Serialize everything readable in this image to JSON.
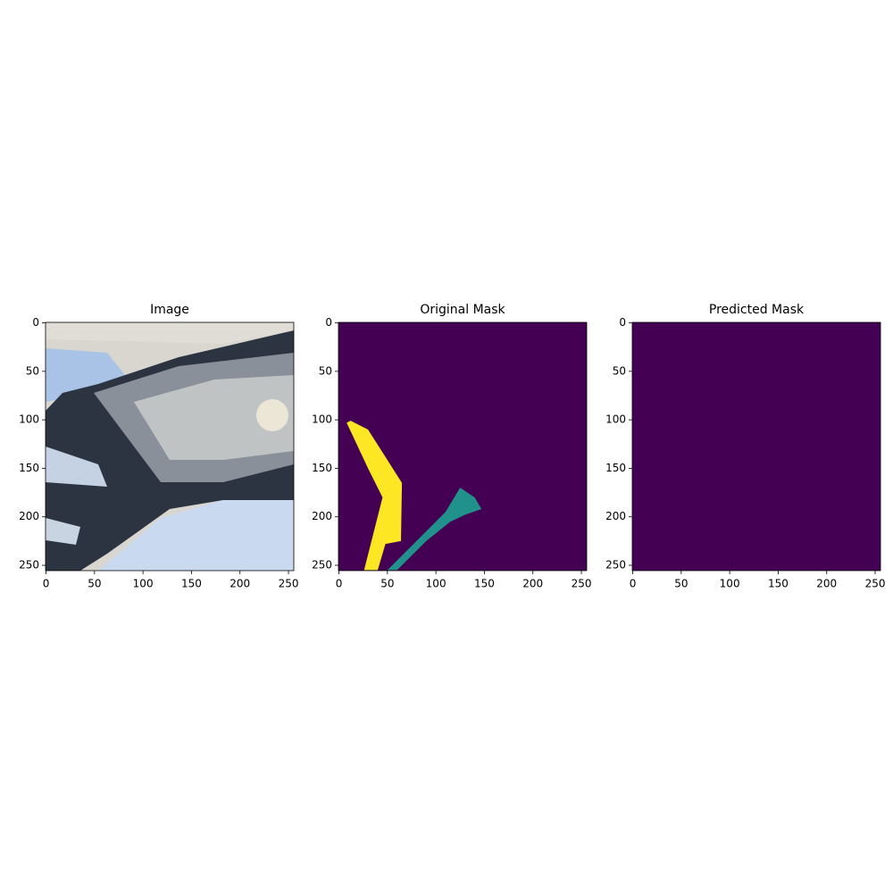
{
  "chart_data": [
    {
      "type": "image",
      "title": "Image",
      "xlim": [
        -0.5,
        255.5
      ],
      "ylim": [
        255.5,
        -0.5
      ],
      "xticks": [
        0,
        50,
        100,
        150,
        200,
        250
      ],
      "yticks": [
        0,
        50,
        100,
        150,
        200,
        250
      ]
    },
    {
      "type": "image",
      "title": "Original Mask",
      "xlim": [
        -0.5,
        255.5
      ],
      "ylim": [
        255.5,
        -0.5
      ],
      "xticks": [
        0,
        50,
        100,
        150,
        200,
        250
      ],
      "yticks": [
        0,
        50,
        100,
        150,
        200,
        250
      ]
    },
    {
      "type": "image",
      "title": "Predicted Mask",
      "xlim": [
        -0.5,
        255.5
      ],
      "ylim": [
        255.5,
        -0.5
      ],
      "xticks": [
        0,
        50,
        100,
        150,
        200,
        250
      ],
      "yticks": [
        0,
        50,
        100,
        150,
        200,
        250
      ]
    }
  ]
}
